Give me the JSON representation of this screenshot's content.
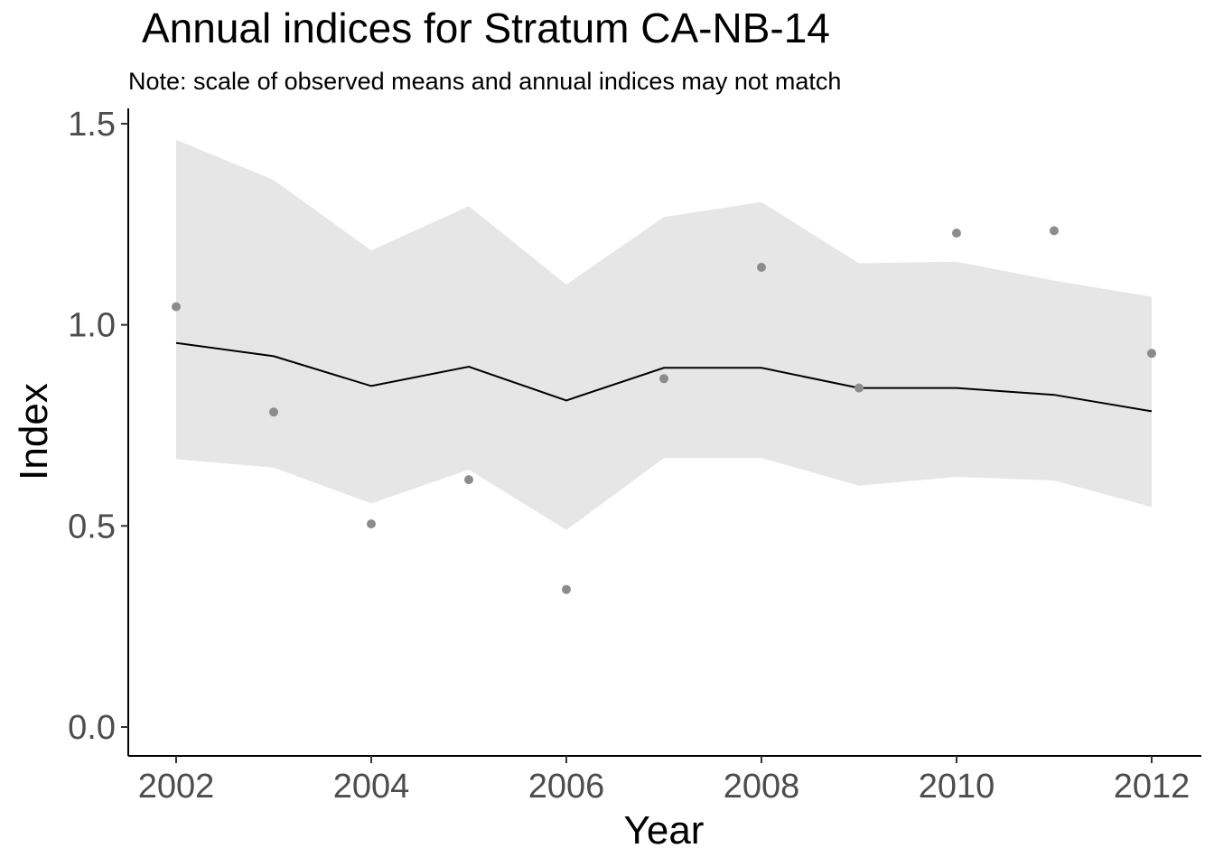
{
  "chart_data": {
    "type": "line",
    "title": "Annual indices for Stratum CA-NB-14",
    "subtitle": "Note: scale of observed means and annual indices may not match",
    "xlabel": "Year",
    "ylabel": "Index",
    "xlim": [
      2001.5,
      2012.5
    ],
    "ylim": [
      -0.07,
      1.52
    ],
    "xticks": [
      2002,
      2004,
      2006,
      2008,
      2010,
      2012
    ],
    "xtick_labels": [
      "2002",
      "2004",
      "2006",
      "2008",
      "2010",
      "2012"
    ],
    "yticks": [
      0.0,
      0.5,
      1.0,
      1.5
    ],
    "ytick_labels": [
      "0.0",
      "0.5",
      "1.0",
      "1.5"
    ],
    "grid": false,
    "x": [
      2002,
      2003,
      2004,
      2005,
      2006,
      2007,
      2008,
      2009,
      2010,
      2011,
      2012
    ],
    "series": [
      {
        "type": "line",
        "values": [
          0.955,
          0.922,
          0.848,
          0.896,
          0.812,
          0.893,
          0.893,
          0.843,
          0.843,
          0.826,
          0.785
        ],
        "color": "#000000"
      },
      {
        "type": "ribbon",
        "lower": [
          0.666,
          0.645,
          0.556,
          0.64,
          0.49,
          0.669,
          0.669,
          0.6,
          0.622,
          0.613,
          0.547
        ],
        "upper": [
          1.46,
          1.36,
          1.185,
          1.295,
          1.1,
          1.268,
          1.305,
          1.153,
          1.157,
          1.11,
          1.07
        ],
        "color": "#e6e6e6"
      },
      {
        "type": "scatter",
        "values": [
          1.045,
          0.783,
          0.505,
          0.615,
          0.342,
          0.866,
          1.143,
          0.843,
          1.228,
          1.234,
          0.929
        ],
        "color": "#8c8c8c"
      }
    ]
  }
}
